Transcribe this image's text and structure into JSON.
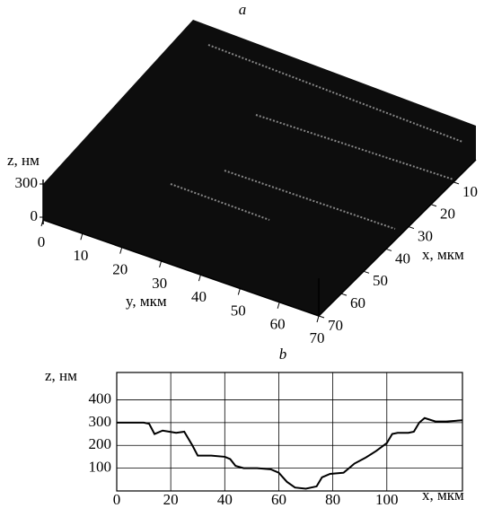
{
  "chart_data": [
    {
      "type": "surface3d",
      "title": "a",
      "z_label": "z, нм",
      "zlim": [
        0,
        300
      ],
      "zticks": [
        0,
        300
      ],
      "x_label": "x, мкм",
      "xlim": [
        0,
        70
      ],
      "xticks": [
        10,
        20,
        30,
        40,
        50,
        60,
        70
      ],
      "y_label": "y, мкм",
      "ylim": [
        0,
        70
      ],
      "yticks": [
        0,
        10,
        20,
        30,
        40,
        50,
        60,
        70
      ],
      "color": "#0d0d0d"
    },
    {
      "type": "line",
      "title": "b",
      "y_label": "z, нм",
      "x_label": "x, мкм",
      "xlim": [
        0,
        128
      ],
      "xticks": [
        0,
        20,
        40,
        60,
        80,
        100
      ],
      "ylim": [
        0,
        520
      ],
      "yticks": [
        100,
        200,
        300,
        400
      ],
      "grid": true,
      "color": "#000000",
      "x": [
        0,
        10,
        12,
        14,
        17,
        22,
        25,
        28,
        30,
        35,
        40,
        42,
        44,
        47,
        52,
        57,
        60,
        63,
        66,
        70,
        74,
        76,
        79,
        84,
        86,
        88,
        92,
        96,
        100,
        102,
        104,
        108,
        110,
        112,
        114,
        118,
        122,
        128
      ],
      "values": [
        300,
        300,
        295,
        250,
        265,
        255,
        260,
        200,
        155,
        155,
        150,
        140,
        110,
        100,
        100,
        95,
        80,
        40,
        15,
        10,
        20,
        60,
        75,
        80,
        100,
        120,
        145,
        175,
        210,
        250,
        255,
        255,
        260,
        300,
        320,
        305,
        305,
        310
      ]
    }
  ]
}
